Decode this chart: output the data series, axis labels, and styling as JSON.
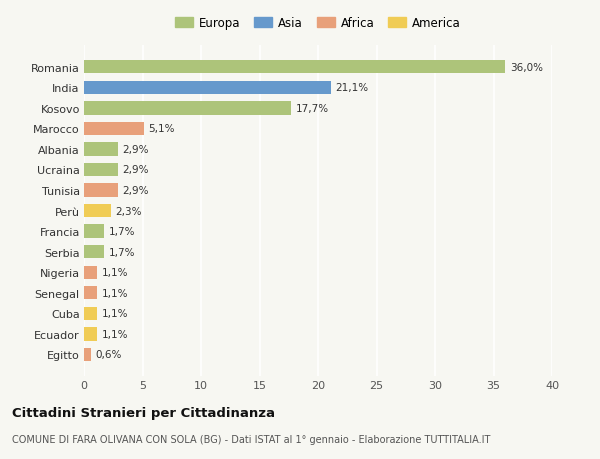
{
  "countries": [
    "Romania",
    "India",
    "Kosovo",
    "Marocco",
    "Albania",
    "Ucraina",
    "Tunisia",
    "Perù",
    "Francia",
    "Serbia",
    "Nigeria",
    "Senegal",
    "Cuba",
    "Ecuador",
    "Egitto"
  ],
  "values": [
    36.0,
    21.1,
    17.7,
    5.1,
    2.9,
    2.9,
    2.9,
    2.3,
    1.7,
    1.7,
    1.1,
    1.1,
    1.1,
    1.1,
    0.6
  ],
  "labels": [
    "36,0%",
    "21,1%",
    "17,7%",
    "5,1%",
    "2,9%",
    "2,9%",
    "2,9%",
    "2,3%",
    "1,7%",
    "1,7%",
    "1,1%",
    "1,1%",
    "1,1%",
    "1,1%",
    "0,6%"
  ],
  "continents": [
    "Europa",
    "Asia",
    "Europa",
    "Africa",
    "Europa",
    "Europa",
    "Africa",
    "America",
    "Europa",
    "Europa",
    "Africa",
    "Africa",
    "America",
    "America",
    "Africa"
  ],
  "colors": {
    "Europa": "#adc47a",
    "Asia": "#6699cc",
    "Africa": "#e8a07a",
    "America": "#f0cc55"
  },
  "xlim": [
    0,
    40
  ],
  "xticks": [
    0,
    5,
    10,
    15,
    20,
    25,
    30,
    35,
    40
  ],
  "title": "Cittadini Stranieri per Cittadinanza",
  "subtitle": "COMUNE DI FARA OLIVANA CON SOLA (BG) - Dati ISTAT al 1° gennaio - Elaborazione TUTTITALIA.IT",
  "background_color": "#f7f7f2",
  "grid_color": "#ffffff",
  "bar_height": 0.65
}
